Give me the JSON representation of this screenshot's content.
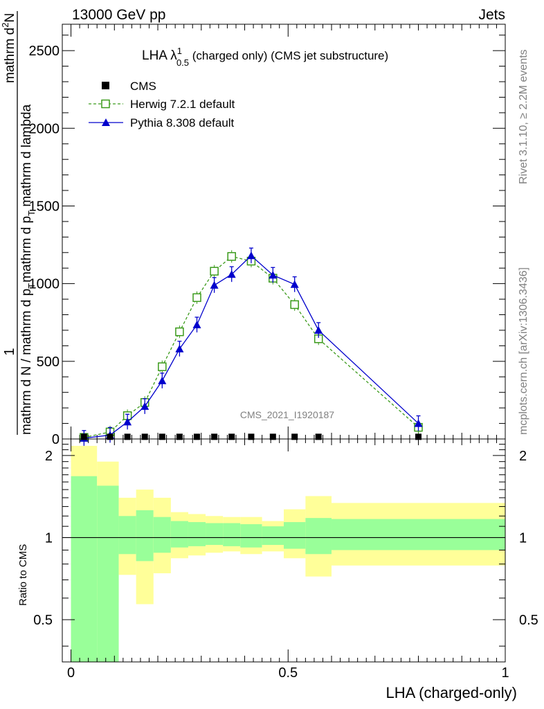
{
  "header": {
    "left": "13000 GeV pp",
    "right": "Jets"
  },
  "side_labels": {
    "rivet": "Rivet 3.1.10, ≥ 2.2M events",
    "mcplots": "mcplots.cern.ch [arXiv:1306.3436]"
  },
  "main_title": {
    "base": "LHA λ",
    "sup": "1",
    "sub": "0.5",
    "rest": " (charged only) (CMS jet substructure)"
  },
  "watermark": "CMS_2021_I1920187",
  "colors": {
    "cms": "#000000",
    "herwig": "#3a9a1a",
    "pythia": "#0000cc",
    "band_inner": "#99ff99",
    "band_outer": "#ffff99"
  },
  "chart_data": [
    {
      "type": "line",
      "title": "LHA λ^1_0.5 (charged only) (CMS jet substructure)",
      "xlabel": "LHA (charged-only)",
      "ylabel": "1 / mathrm d N / mathrm d p_T mathrm d^2 N / mathrm d p_T mathrm d lambda",
      "ylabel_parts": {
        "numer_top": "1",
        "numer_bottom": "mathrm d N / mathrm d p",
        "numer_bottom_sub": "T",
        "denom_top": "mathrm d",
        "denom_top_sup": "2",
        "denom_top_tail": "N",
        "denom_bottom": "mathrm d p",
        "denom_bottom_sub": "T",
        "denom_bottom_tail": " mathrm d lambda"
      },
      "xlim": [
        -0.02,
        1.0
      ],
      "ylim": [
        0,
        2670
      ],
      "yticks": [
        0,
        500,
        1000,
        1500,
        2000,
        2500
      ],
      "ytick_labels": [
        "0",
        "500",
        "1000",
        "1500",
        "2000",
        "2500"
      ],
      "legend_position": "top-left",
      "series": [
        {
          "name": "CMS",
          "marker": "square",
          "x": [
            0.03,
            0.09,
            0.13,
            0.17,
            0.21,
            0.25,
            0.29,
            0.33,
            0.37,
            0.415,
            0.465,
            0.515,
            0.57,
            0.8
          ],
          "y": [
            5,
            5,
            5,
            5,
            5,
            5,
            5,
            5,
            5,
            5,
            5,
            5,
            5,
            5
          ]
        },
        {
          "name": "Herwig 7.2.1 default",
          "marker": "open-square",
          "line": "dashed",
          "x": [
            0.03,
            0.09,
            0.13,
            0.17,
            0.21,
            0.25,
            0.29,
            0.33,
            0.37,
            0.415,
            0.465,
            0.515,
            0.57,
            0.8
          ],
          "y": [
            10,
            45,
            150,
            235,
            465,
            690,
            910,
            1080,
            1175,
            1145,
            1035,
            865,
            645,
            75
          ]
        },
        {
          "name": "Pythia 8.308 default",
          "marker": "triangle",
          "line": "solid",
          "x": [
            0.03,
            0.09,
            0.13,
            0.17,
            0.21,
            0.25,
            0.29,
            0.33,
            0.37,
            0.415,
            0.465,
            0.515,
            0.57,
            0.8
          ],
          "y": [
            5,
            25,
            110,
            210,
            375,
            580,
            735,
            990,
            1060,
            1180,
            1055,
            995,
            700,
            100
          ]
        }
      ]
    },
    {
      "type": "area",
      "title": "",
      "xlabel": "LHA (charged-only)",
      "ylabel": "Ratio to CMS",
      "xlim": [
        -0.02,
        1.0
      ],
      "ylim": [
        0.35,
        2.3
      ],
      "xticks": [
        0,
        0.5,
        1
      ],
      "xtick_labels": [
        "0",
        "0.5",
        "1"
      ],
      "yticks": [
        0.5,
        1,
        2
      ],
      "ytick_labels": [
        "0.5",
        "1",
        "2"
      ],
      "y_scale": "log",
      "reference_line": 1,
      "bins": [
        0,
        0.06,
        0.11,
        0.15,
        0.19,
        0.23,
        0.27,
        0.31,
        0.35,
        0.39,
        0.44,
        0.49,
        0.54,
        0.6,
        1.0
      ],
      "inner_band": {
        "low": [
          0.3,
          0.3,
          0.87,
          0.82,
          0.88,
          0.92,
          0.93,
          0.94,
          0.93,
          0.92,
          0.94,
          0.91,
          0.87,
          0.9
        ],
        "high": [
          1.68,
          1.55,
          1.2,
          1.26,
          1.19,
          1.15,
          1.14,
          1.13,
          1.13,
          1.12,
          1.1,
          1.14,
          1.18,
          1.17
        ]
      },
      "outer_band": {
        "low": [
          0.3,
          0.58,
          0.73,
          0.57,
          0.74,
          0.84,
          0.86,
          0.88,
          0.89,
          0.87,
          0.89,
          0.84,
          0.72,
          0.79
        ],
        "high": [
          2.17,
          1.9,
          1.4,
          1.5,
          1.4,
          1.24,
          1.22,
          1.2,
          1.19,
          1.19,
          1.15,
          1.27,
          1.42,
          1.34
        ]
      }
    }
  ]
}
